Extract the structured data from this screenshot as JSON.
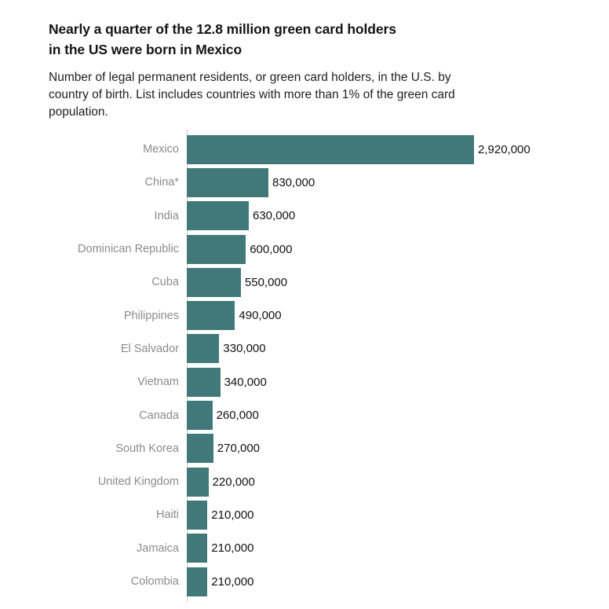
{
  "header": {
    "title_lines": [
      "Nearly a quarter of the 12.8 million green card holders",
      "in the US were born in Mexico"
    ],
    "subtitle_lines": [
      "Number of legal permanent residents, or green card holders, in the U.S. by",
      "country of birth. List includes countries with more than 1% of the green card",
      "population."
    ]
  },
  "chart_data": {
    "type": "bar",
    "orientation": "horizontal",
    "title": "Nearly a quarter of the 12.8 million green card holders in the US were born in Mexico",
    "subtitle": "Number of legal permanent residents, or green card holders, in the U.S. by country of birth. List includes countries with more than 1% of the green card population.",
    "categories": [
      "Mexico",
      "China*",
      "India",
      "Dominican Republic",
      "Cuba",
      "Philippines",
      "El Salvador",
      "Vietnam",
      "Canada",
      "South Korea",
      "United Kingdom",
      "Haiti",
      "Jamaica",
      "Colombia"
    ],
    "values": [
      2920000,
      830000,
      630000,
      600000,
      550000,
      490000,
      330000,
      340000,
      260000,
      270000,
      220000,
      210000,
      210000,
      210000
    ],
    "value_labels": [
      "2,920,000",
      "830,000",
      "630,000",
      "600,000",
      "550,000",
      "490,000",
      "330,000",
      "340,000",
      "260,000",
      "270,000",
      "220,000",
      "210,000",
      "210,000",
      "210,000"
    ],
    "xlim": [
      0,
      2920000
    ],
    "grid": false,
    "legend": false,
    "bar_color": "#41797B",
    "category_label_color": "#8B8B8B",
    "value_label_color": "#111111",
    "axis_line_color": "#CCCCCC"
  }
}
